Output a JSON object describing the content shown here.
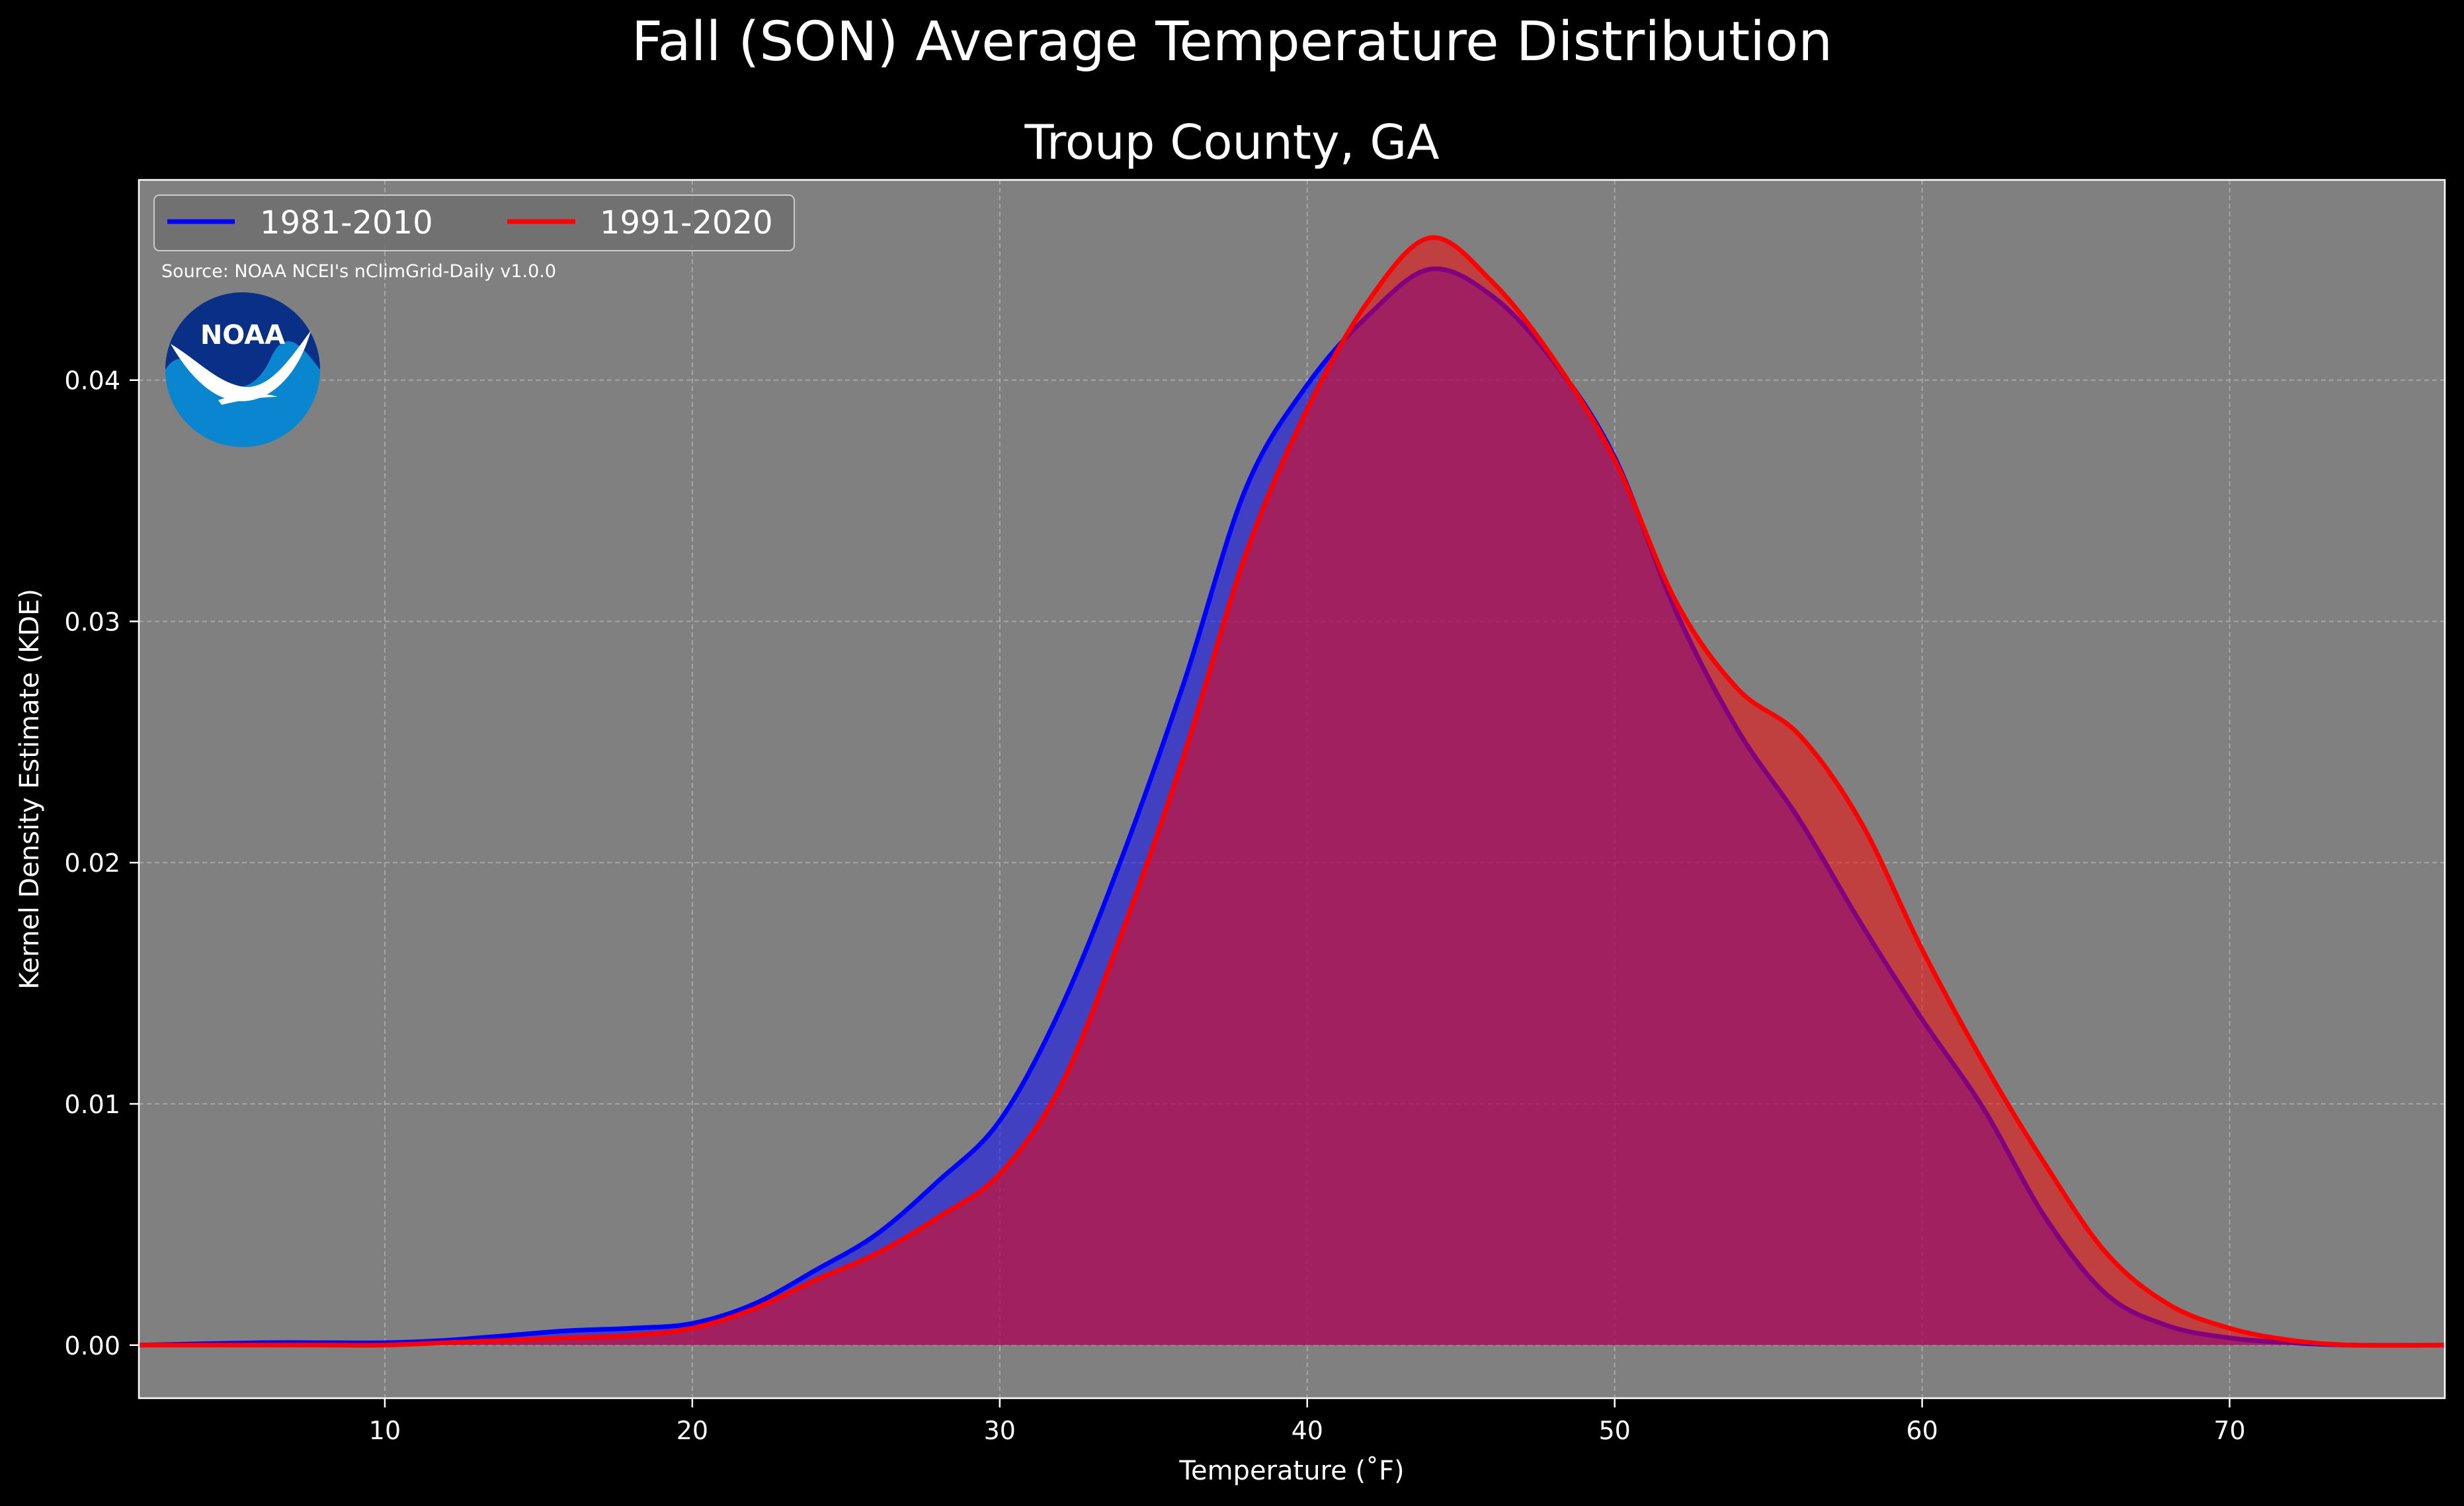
{
  "chart_data": {
    "type": "area",
    "title": "Fall (SON) Average Temperature Distribution",
    "subtitle": "Troup County, GA",
    "xlabel": "Temperature ($^\\circ$F)",
    "xlabel_display": "Temperature (˚F)",
    "ylabel": "Kernel Density Estimate (KDE)",
    "xlim": [
      2,
      77
    ],
    "ylim": [
      -0.0022,
      0.0483
    ],
    "xticks": [
      10,
      20,
      30,
      40,
      50,
      60,
      70
    ],
    "yticks": [
      "0.00",
      "0.01",
      "0.02",
      "0.03",
      "0.04"
    ],
    "grid": true,
    "legend_placement": "top-left",
    "annotation": "Source: NOAA NCEI's nClimGrid-Daily v1.0.0",
    "logo_text": "NOAA",
    "colors": {
      "background": "#000000",
      "plot_background": "#808080",
      "text": "#ffffff",
      "grid": "#b3b3b3",
      "series_1": "#0000ff",
      "series_2": "#ff0000",
      "logo_outer": "#0a85d0",
      "logo_inner": "#0a2f87"
    },
    "series": [
      {
        "name": "1981-2010",
        "color": "#0000ff",
        "x": [
          2,
          6,
          8,
          10,
          12,
          14,
          16,
          18,
          20,
          22,
          24,
          26,
          28,
          30,
          32,
          34,
          36,
          38,
          40,
          42,
          44,
          46,
          48,
          50,
          52,
          54,
          56,
          58,
          60,
          62,
          64,
          66,
          68,
          70,
          72,
          74,
          77
        ],
        "y": [
          0.0,
          0.0001,
          0.0001,
          0.0001,
          0.0002,
          0.0004,
          0.0006,
          0.0007,
          0.0009,
          0.0017,
          0.0031,
          0.0046,
          0.0068,
          0.0093,
          0.014,
          0.0203,
          0.0275,
          0.0355,
          0.0398,
          0.0427,
          0.0446,
          0.0435,
          0.0408,
          0.0368,
          0.0304,
          0.0255,
          0.0218,
          0.0175,
          0.0135,
          0.0098,
          0.0053,
          0.0021,
          0.0008,
          0.0003,
          0.0001,
          0.0,
          0.0
        ]
      },
      {
        "name": "1991-2020",
        "color": "#ff0000",
        "x": [
          2,
          6,
          8,
          10,
          12,
          14,
          16,
          18,
          20,
          22,
          24,
          26,
          28,
          30,
          32,
          34,
          36,
          38,
          40,
          42,
          44,
          46,
          48,
          50,
          52,
          54,
          56,
          58,
          60,
          62,
          64,
          66,
          68,
          70,
          72,
          74,
          77
        ],
        "y": [
          0.0,
          0.0,
          0.0,
          0.0,
          0.0001,
          0.0002,
          0.0003,
          0.0004,
          0.0007,
          0.0015,
          0.0027,
          0.0038,
          0.0053,
          0.0071,
          0.0108,
          0.0172,
          0.0245,
          0.0328,
          0.0388,
          0.0433,
          0.0459,
          0.0441,
          0.0409,
          0.0367,
          0.0308,
          0.0272,
          0.0253,
          0.0217,
          0.0164,
          0.0117,
          0.0075,
          0.0038,
          0.0017,
          0.0007,
          0.0002,
          0.0,
          0.0
        ]
      }
    ]
  }
}
